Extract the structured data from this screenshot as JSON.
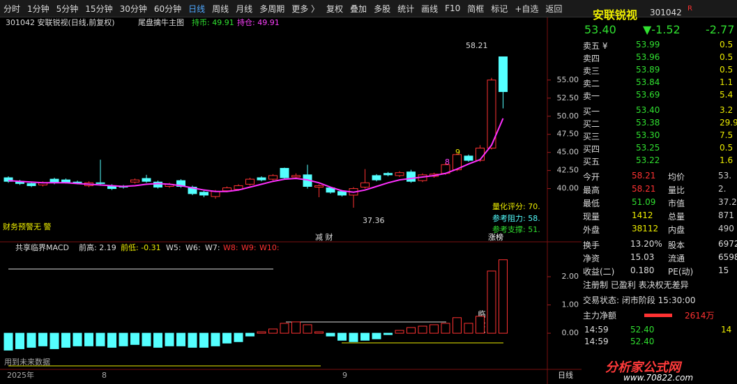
{
  "toolbar": {
    "items": [
      "分时",
      "1分钟",
      "5分钟",
      "15分钟",
      "30分钟",
      "60分钟",
      "日线",
      "周线",
      "月线",
      "多周期",
      "更多 〉",
      "复权",
      "叠加",
      "多股",
      "统计",
      "画线",
      "F10",
      "简框",
      "标记",
      "+自选",
      "返回"
    ]
  },
  "chart_data": [
    {
      "type": "candlestick",
      "title": "301042 安联锐视(日线,前复权)",
      "subtitle": "尾盘擒牛主图",
      "annotations": {
        "hold_coin": "持币: 49.91",
        "hold_pos": "持仓: 49.91",
        "high_mark": "58.21",
        "low_mark": "37.36",
        "score": "量化评分: 70.",
        "resist": "参考阻力: 58.",
        "support": "参考支撑: 51.",
        "warn": "财务预警无 警",
        "tag1": "减 财",
        "tag2": "涨榜",
        "n8": "8",
        "n9": "9"
      },
      "open": [
        41.5,
        41.0,
        40.7,
        40.5,
        41.3,
        41.2,
        40.9,
        40.4,
        40.8,
        40.4,
        40.3,
        40.9,
        41.4,
        40.9,
        40.3,
        41.1,
        40.2,
        39.5,
        38.9,
        39.7,
        39.9,
        40.6,
        41.5,
        41.3,
        42.8,
        41.6,
        41.9,
        40.2,
        40.1,
        39.6,
        39.1,
        40.2,
        41.8,
        42.1,
        41.8,
        42.3,
        41.1,
        41.7,
        42.1,
        42.6,
        44.5,
        43.9,
        45.6,
        58.21
      ],
      "high": [
        41.7,
        41.2,
        40.9,
        41.0,
        41.5,
        41.4,
        41.1,
        41.0,
        44.0,
        40.6,
        40.5,
        41.4,
        41.9,
        41.1,
        40.8,
        41.3,
        40.4,
        39.7,
        39.8,
        40.3,
        40.6,
        41.5,
        41.7,
        42.0,
        42.9,
        42.1,
        43.3,
        40.6,
        40.3,
        39.8,
        40.2,
        42.7,
        42.0,
        42.3,
        42.4,
        42.6,
        42.1,
        42.2,
        43.5,
        44.9,
        44.7,
        46.0,
        55.3,
        58.21
      ],
      "low": [
        40.8,
        40.5,
        40.2,
        40.3,
        40.6,
        40.7,
        40.6,
        40.2,
        40.4,
        39.8,
        40.0,
        40.7,
        40.8,
        40.0,
        40.1,
        40.1,
        39.1,
        38.8,
        38.6,
        39.5,
        39.7,
        40.4,
        41.0,
        41.1,
        41.3,
        41.3,
        40.0,
        38.8,
        39.3,
        38.9,
        37.36,
        40.0,
        41.0,
        41.7,
        41.6,
        40.8,
        40.9,
        41.5,
        41.9,
        42.4,
        43.7,
        43.7,
        45.4,
        51.09
      ],
      "close": [
        41.0,
        40.7,
        40.4,
        40.8,
        40.8,
        40.9,
        40.8,
        40.8,
        40.7,
        40.0,
        40.2,
        41.2,
        41.0,
        40.2,
        40.6,
        40.3,
        39.3,
        39.1,
        39.6,
        40.1,
        40.4,
        41.3,
        41.2,
        41.8,
        41.5,
        41.8,
        40.3,
        40.4,
        39.5,
        39.1,
        40.0,
        40.8,
        41.2,
        41.9,
        42.2,
        41.0,
        41.9,
        42.0,
        43.3,
        44.7,
        43.9,
        45.6,
        55.0,
        53.4
      ],
      "ma_values": [
        41.1,
        41.0,
        40.9,
        40.8,
        40.8,
        40.8,
        40.7,
        40.6,
        40.5,
        40.4,
        40.3,
        40.4,
        40.6,
        40.7,
        40.6,
        40.4,
        40.1,
        39.8,
        39.6,
        39.6,
        39.8,
        40.2,
        40.6,
        41.0,
        41.3,
        41.4,
        41.2,
        40.8,
        40.2,
        39.7,
        39.5,
        39.8,
        40.3,
        40.8,
        41.2,
        41.4,
        41.6,
        41.8,
        42.1,
        42.7,
        43.4,
        44.0,
        46.0,
        49.7
      ],
      "ma_color": "#ff30ff",
      "up_color": "#ff3232",
      "down_color": "#54ffff",
      "ylim": [
        35.05,
        59.8
      ],
      "yticks": [
        {
          "value": 40,
          "label": "40.00"
        },
        {
          "value": 42.5,
          "label": "42.50"
        },
        {
          "value": 45,
          "label": "45.00"
        },
        {
          "value": 47.5,
          "label": "47.50"
        },
        {
          "value": 50,
          "label": "50.00"
        },
        {
          "value": 52.5,
          "label": "52.50"
        },
        {
          "value": 55,
          "label": "55.00"
        }
      ]
    },
    {
      "type": "bar",
      "title": "共享临界MACD",
      "annotations": {
        "prev_high": "前高: 2.19",
        "prev_low": "前低: -0.31",
        "w5": "W5:",
        "w6": "W6:",
        "w7": "W7:",
        "w8": "W8:",
        "w9": "W9:",
        "w10": "W10:",
        "crit": "临界点",
        "future": "用到未来数据"
      },
      "values": [
        -0.6,
        -0.55,
        -0.5,
        -0.45,
        -0.55,
        -0.5,
        -0.45,
        -0.45,
        -0.45,
        -0.5,
        -0.45,
        -0.4,
        -0.45,
        -0.5,
        -0.45,
        -0.45,
        -0.5,
        -0.5,
        -0.45,
        -0.35,
        -0.3,
        -0.1,
        0.05,
        0.15,
        0.35,
        0.4,
        0.3,
        0.05,
        -0.1,
        -0.25,
        -0.3,
        -0.25,
        -0.2,
        -0.05,
        0.1,
        0.2,
        0.25,
        0.3,
        0.35,
        0.55,
        0.35,
        0.6,
        2.2,
        2.6
      ],
      "up_color": "#ff3232",
      "down_color": "#54ffff",
      "ylim": [
        -1.28,
        3.16
      ],
      "yticks": [
        {
          "value": 0,
          "label": "0.00"
        },
        {
          "value": 1,
          "label": "1.00"
        },
        {
          "value": 2,
          "label": "2.00"
        }
      ]
    }
  ],
  "date_axis": {
    "labels": [
      "2025年",
      "8",
      "9"
    ],
    "period": "日线"
  },
  "quote": {
    "name": "安联锐视",
    "code": "301042",
    "flag": "R",
    "price": "53.40",
    "change": "▼-1.52",
    "pct": "-2.77",
    "book": [
      [
        "卖五 ¥",
        "53.99",
        "0.5"
      ],
      [
        "卖四",
        "53.96",
        "0.5"
      ],
      [
        "卖三",
        "53.89",
        "0.5"
      ],
      [
        "卖二",
        "53.84",
        "1.1"
      ],
      [
        "卖一",
        "53.69",
        "5.4"
      ],
      [
        "买一",
        "53.40",
        "3.2"
      ],
      [
        "买二",
        "53.38",
        "29.9"
      ],
      [
        "买三",
        "53.30",
        "7.5"
      ],
      [
        "买四",
        "53.25",
        "0.5"
      ],
      [
        "买五",
        "53.22",
        "1.6"
      ]
    ],
    "stats": [
      [
        "今开",
        "58.21",
        "均价",
        "53."
      ],
      [
        "最高",
        "58.21",
        "量比",
        "2."
      ],
      [
        "最低",
        "51.09",
        "市值",
        "37.2"
      ],
      [
        "现量",
        "1412",
        "总量",
        "871"
      ],
      [
        "外盘",
        "38112",
        "内盘",
        "490"
      ]
    ],
    "stats2": [
      [
        "换手",
        "13.20%",
        "股本",
        "6972"
      ],
      [
        "净资",
        "15.03",
        "流通",
        "6598"
      ],
      [
        "收益(二)",
        "0.180",
        "PE(动)",
        "15"
      ]
    ],
    "tags": "注册制 已盈利 表决权无差异",
    "status": "交易状态: 闭市阶段 15:30:00",
    "main_net_label": "主力净额",
    "main_net": "2614万",
    "ticks": [
      [
        "14:59",
        "52.40",
        "14"
      ],
      [
        "14:59",
        "52.40"
      ]
    ]
  },
  "watermark": {
    "name": "分析家公式网",
    "url": "www.70822.com"
  }
}
